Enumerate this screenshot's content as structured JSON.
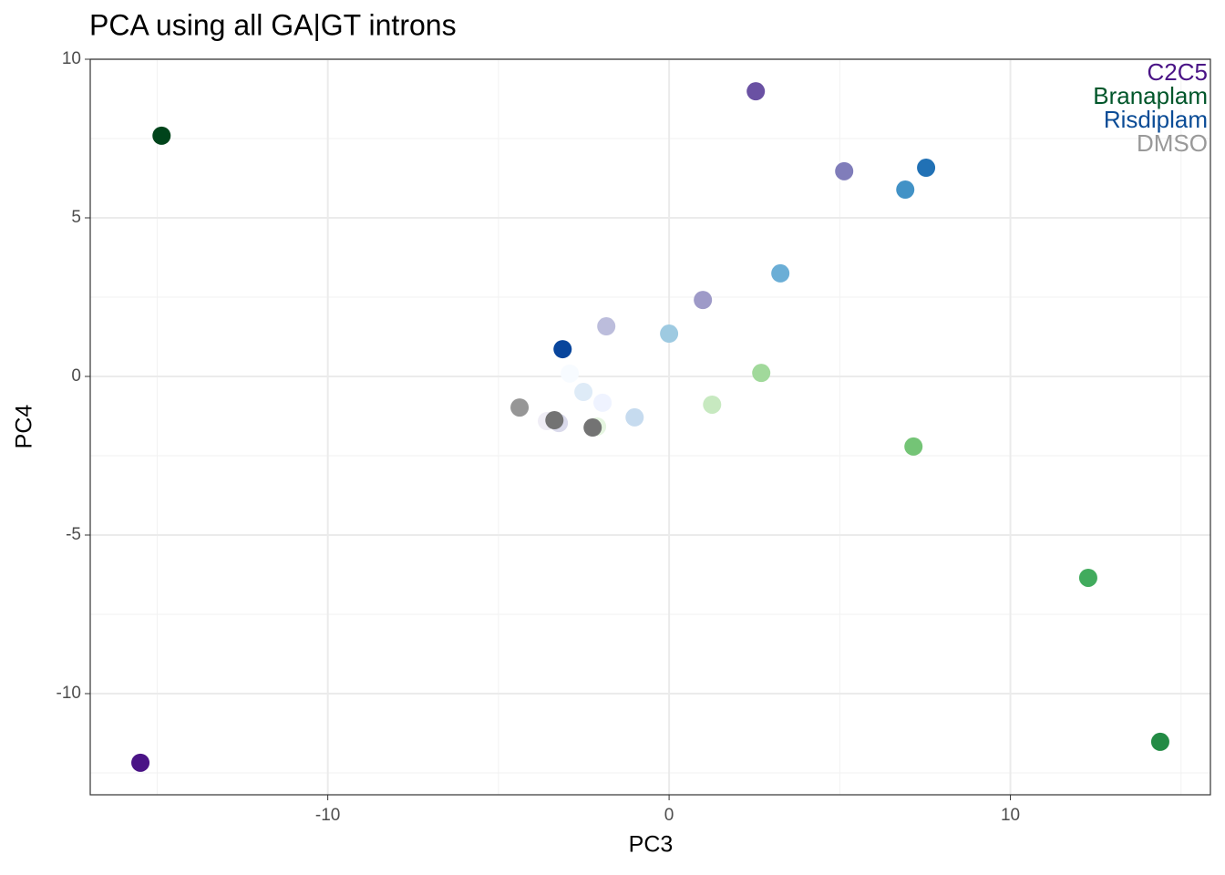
{
  "chart_data": {
    "type": "scatter",
    "title": "PCA using all GA|GT introns",
    "xlabel": "PC3",
    "ylabel": "PC4",
    "xlim": [
      -16.96,
      15.86
    ],
    "ylim": [
      -13.19,
      10
    ],
    "xticks": [
      -10,
      0,
      10
    ],
    "yticks": [
      -10,
      -5,
      0,
      5,
      10
    ],
    "grid": true,
    "legend": "top-right",
    "series": [
      {
        "name": "C2C5",
        "color": "#4a1486",
        "x": [
          -3.58,
          -3.23,
          -1.84,
          0.99,
          5.13,
          2.54,
          -15.49
        ],
        "values": [
          -1.41,
          -1.47,
          1.58,
          2.41,
          6.47,
          8.99,
          -12.18
        ],
        "colors": [
          "#efedf5",
          "#dadaeb",
          "#bcbddc",
          "#9e9ac8",
          "#807dba",
          "#6a51a3",
          "#4a1486"
        ]
      },
      {
        "name": "Branaplam",
        "color": "#00562a",
        "x": [
          -2.11,
          1.26,
          2.7,
          7.16,
          12.28,
          14.39,
          -14.87
        ],
        "values": [
          -1.58,
          -0.89,
          0.11,
          -2.21,
          -6.35,
          -11.52,
          7.59
        ],
        "colors": [
          "#e5f5e0",
          "#c7e9c0",
          "#a1d99b",
          "#74c476",
          "#41ab5d",
          "#238b45",
          "#00441b"
        ]
      },
      {
        "name": "Risdiplam",
        "color": "#0b4c96",
        "x": [
          -2.91,
          -1.95,
          -2.51,
          -1.01,
          0.0,
          3.26,
          6.92,
          7.53,
          -3.12
        ],
        "values": [
          0.09,
          -0.83,
          -0.49,
          -1.29,
          1.35,
          3.25,
          5.89,
          6.58,
          0.86
        ],
        "colors": [
          "#f7fbff",
          "#eff3ff",
          "#deebf7",
          "#c6dbef",
          "#9ecae1",
          "#6baed6",
          "#4292c6",
          "#2171b5",
          "#08459c"
        ]
      },
      {
        "name": "DMSO",
        "color": "#999999",
        "x": [
          -4.38,
          -3.36,
          -2.24
        ],
        "values": [
          -0.98,
          -1.38,
          -1.61
        ],
        "colors": [
          "#969696",
          "#737373",
          "#737373"
        ]
      }
    ]
  }
}
